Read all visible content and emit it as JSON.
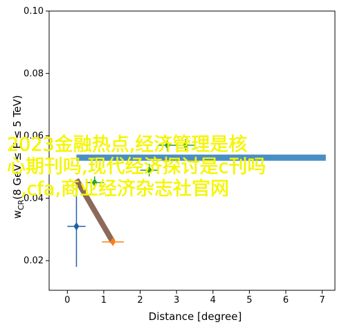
{
  "chart_data": {
    "type": "scatter",
    "xlabel": "Distance [degree]",
    "ylabel": {
      "main": "w",
      "sub": "CR",
      "rest": "(8 GeV ≤ E ≤ 5 TeV)"
    },
    "xlim": [
      -0.5,
      7.35
    ],
    "ylim": [
      0.0105,
      0.1
    ],
    "xticks": [
      0,
      1,
      2,
      3,
      4,
      5,
      6,
      7
    ],
    "yticks": [
      0.02,
      0.04,
      0.06,
      0.08,
      {
        "value": 0.1,
        "label": "0.10"
      }
    ],
    "band": {
      "x": [
        0.25,
        7.1
      ],
      "y": 0.053,
      "color": "#4a8fc4"
    },
    "trend": {
      "x": [
        0.25,
        1.25
      ],
      "y": [
        0.046,
        0.026
      ],
      "color": "#8c6a5a"
    },
    "points": [
      {
        "x": 0.25,
        "y": 0.031,
        "xerr": 0.25,
        "yerr": 0.013,
        "color": "#1f5fa8"
      },
      {
        "x": 1.25,
        "y": 0.026,
        "xerr": 0.3,
        "yerr": 0.001,
        "color": "#ff7f0e"
      },
      {
        "x": 0.75,
        "y": 0.045,
        "xerr": 0.25,
        "yerr": 0.002,
        "color": "#2ca02c"
      },
      {
        "x": 2.25,
        "y": 0.049,
        "xerr": 0.25,
        "yerr": 0.002,
        "color": "#2ca02c"
      },
      {
        "x": 2.75,
        "y": 0.057,
        "xerr": 0.25,
        "yerr": 0.002,
        "color": "#2ca02c"
      },
      {
        "x": 3.25,
        "y": 0.057,
        "xerr": 0.25,
        "yerr": 0.002,
        "color": "#2ca02c"
      }
    ],
    "watermark": [
      "2023金融热点,经济管理是核",
      "心期刊吗,现代经济探讨是c刊吗",
      ",cfa,商业经济杂志社官网"
    ]
  }
}
